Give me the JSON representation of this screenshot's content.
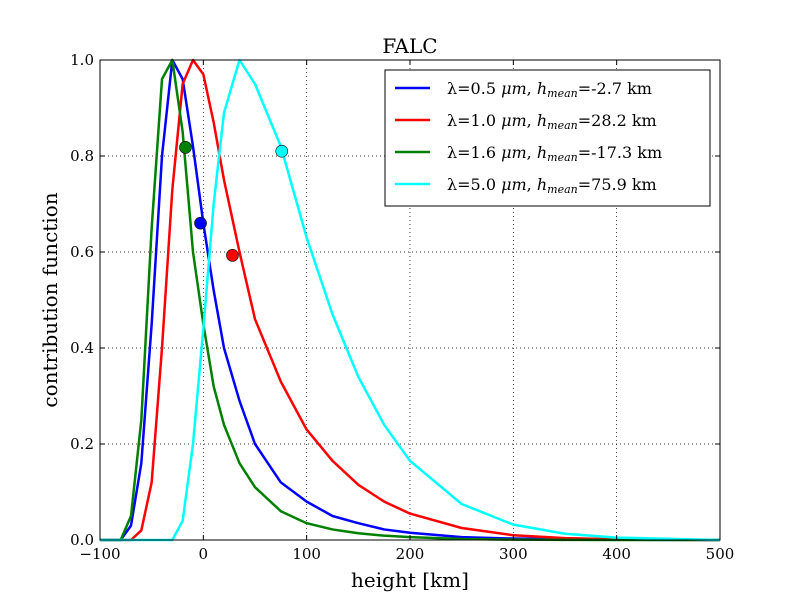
{
  "chart_data": {
    "type": "line",
    "title": "FALC",
    "xlabel": "height [km]",
    "ylabel": "contribution function",
    "xlim": [
      -100,
      500
    ],
    "ylim": [
      0.0,
      1.0
    ],
    "x_ticks": [
      "−100",
      "0",
      "100",
      "200",
      "300",
      "400",
      "500"
    ],
    "y_ticks": [
      "0.0",
      "0.2",
      "0.4",
      "0.6",
      "0.8",
      "1.0"
    ],
    "grid": true,
    "legend_position": "top-right",
    "series": [
      {
        "name": "λ=0.5 μm, h_mean=-2.7 km",
        "legend": {
          "pre": "λ=0.5 ",
          "unit": "μm",
          "mid": ", ",
          "h": "h",
          "sub": "mean",
          "post": "=-2.7 km"
        },
        "color": "#0000ff",
        "x": [
          -100,
          -80,
          -70,
          -60,
          -50,
          -40,
          -30,
          -20,
          -10,
          0,
          10,
          20,
          35,
          50,
          75,
          100,
          125,
          150,
          175,
          200,
          250,
          300,
          350,
          400,
          500
        ],
        "y": [
          0.0,
          0.0,
          0.03,
          0.16,
          0.45,
          0.8,
          1.0,
          0.96,
          0.82,
          0.66,
          0.52,
          0.4,
          0.29,
          0.2,
          0.12,
          0.08,
          0.05,
          0.035,
          0.022,
          0.015,
          0.006,
          0.003,
          0.0015,
          0.0005,
          0.0
        ],
        "marker": {
          "x": -2.7,
          "y": 0.66
        }
      },
      {
        "name": "λ=1.0 μm, h_mean=28.2 km",
        "legend": {
          "pre": "λ=1.0 ",
          "unit": "μm",
          "mid": ", ",
          "h": "h",
          "sub": "mean",
          "post": "=28.2 km"
        },
        "color": "#ff0000",
        "x": [
          -100,
          -80,
          -70,
          -60,
          -50,
          -40,
          -30,
          -20,
          -10,
          0,
          10,
          20,
          35,
          50,
          75,
          100,
          125,
          150,
          175,
          200,
          250,
          300,
          350,
          400,
          500
        ],
        "y": [
          0.0,
          0.0,
          0.0,
          0.02,
          0.12,
          0.4,
          0.73,
          0.95,
          1.0,
          0.97,
          0.87,
          0.75,
          0.6,
          0.46,
          0.33,
          0.23,
          0.165,
          0.115,
          0.08,
          0.055,
          0.025,
          0.01,
          0.004,
          0.0015,
          0.0
        ],
        "marker": {
          "x": 28.2,
          "y": 0.593
        }
      },
      {
        "name": "λ=1.6 μm, h_mean=-17.3 km",
        "legend": {
          "pre": "λ=1.6 ",
          "unit": "μm",
          "mid": ", ",
          "h": "h",
          "sub": "mean",
          "post": "=-17.3 km"
        },
        "color": "#008000",
        "x": [
          -100,
          -80,
          -70,
          -60,
          -50,
          -40,
          -30,
          -20,
          -10,
          0,
          10,
          20,
          35,
          50,
          75,
          100,
          125,
          150,
          175,
          200,
          250,
          300,
          350,
          400,
          500
        ],
        "y": [
          0.0,
          0.0,
          0.05,
          0.25,
          0.65,
          0.96,
          1.0,
          0.85,
          0.6,
          0.45,
          0.32,
          0.24,
          0.16,
          0.11,
          0.06,
          0.035,
          0.022,
          0.014,
          0.009,
          0.006,
          0.002,
          0.0008,
          0.0003,
          0.0001,
          0.0
        ],
        "marker": {
          "x": -17.3,
          "y": 0.818
        }
      },
      {
        "name": "λ=5.0 μm, h_mean=75.9 km",
        "legend": {
          "pre": "λ=5.0 ",
          "unit": "μm",
          "mid": ", ",
          "h": "h",
          "sub": "mean",
          "post": "=75.9 km"
        },
        "color": "#00ffff",
        "x": [
          -100,
          -50,
          -30,
          -20,
          -10,
          0,
          10,
          20,
          35,
          50,
          75,
          100,
          125,
          150,
          175,
          200,
          250,
          300,
          350,
          400,
          500
        ],
        "y": [
          0.0,
          0.0,
          0.0,
          0.04,
          0.2,
          0.44,
          0.7,
          0.89,
          1.0,
          0.95,
          0.82,
          0.63,
          0.47,
          0.34,
          0.24,
          0.165,
          0.075,
          0.032,
          0.013,
          0.005,
          0.0
        ],
        "marker": {
          "x": 75.9,
          "y": 0.81
        }
      }
    ]
  }
}
